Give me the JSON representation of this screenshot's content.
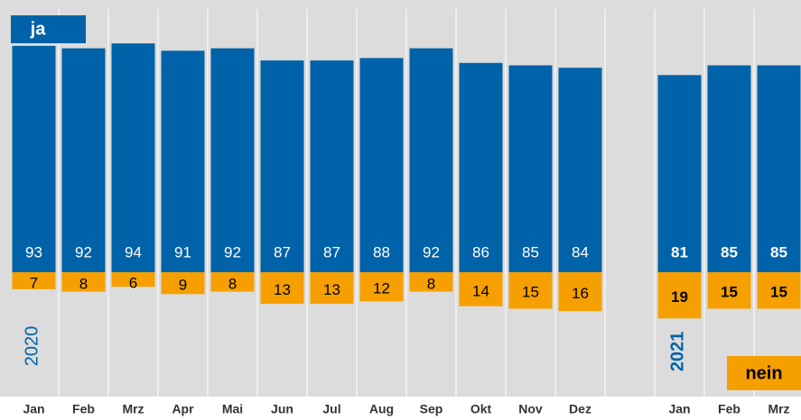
{
  "chart_data": {
    "type": "bar",
    "categories": [
      "Jan",
      "Feb",
      "Mrz",
      "Apr",
      "Mai",
      "Jun",
      "Jul",
      "Aug",
      "Sep",
      "Okt",
      "Nov",
      "Dez",
      null,
      "Jan",
      "Feb",
      "Mrz"
    ],
    "series": [
      {
        "name": "ja",
        "color": "#0062a8",
        "values": [
          93,
          92,
          94,
          91,
          92,
          87,
          87,
          88,
          92,
          86,
          85,
          84,
          null,
          81,
          85,
          85
        ]
      },
      {
        "name": "nein",
        "color": "#f5a000",
        "values": [
          7,
          8,
          6,
          9,
          8,
          13,
          13,
          12,
          8,
          14,
          15,
          16,
          null,
          19,
          15,
          15
        ]
      }
    ],
    "annotations": [
      "2020",
      "2021"
    ]
  }
}
